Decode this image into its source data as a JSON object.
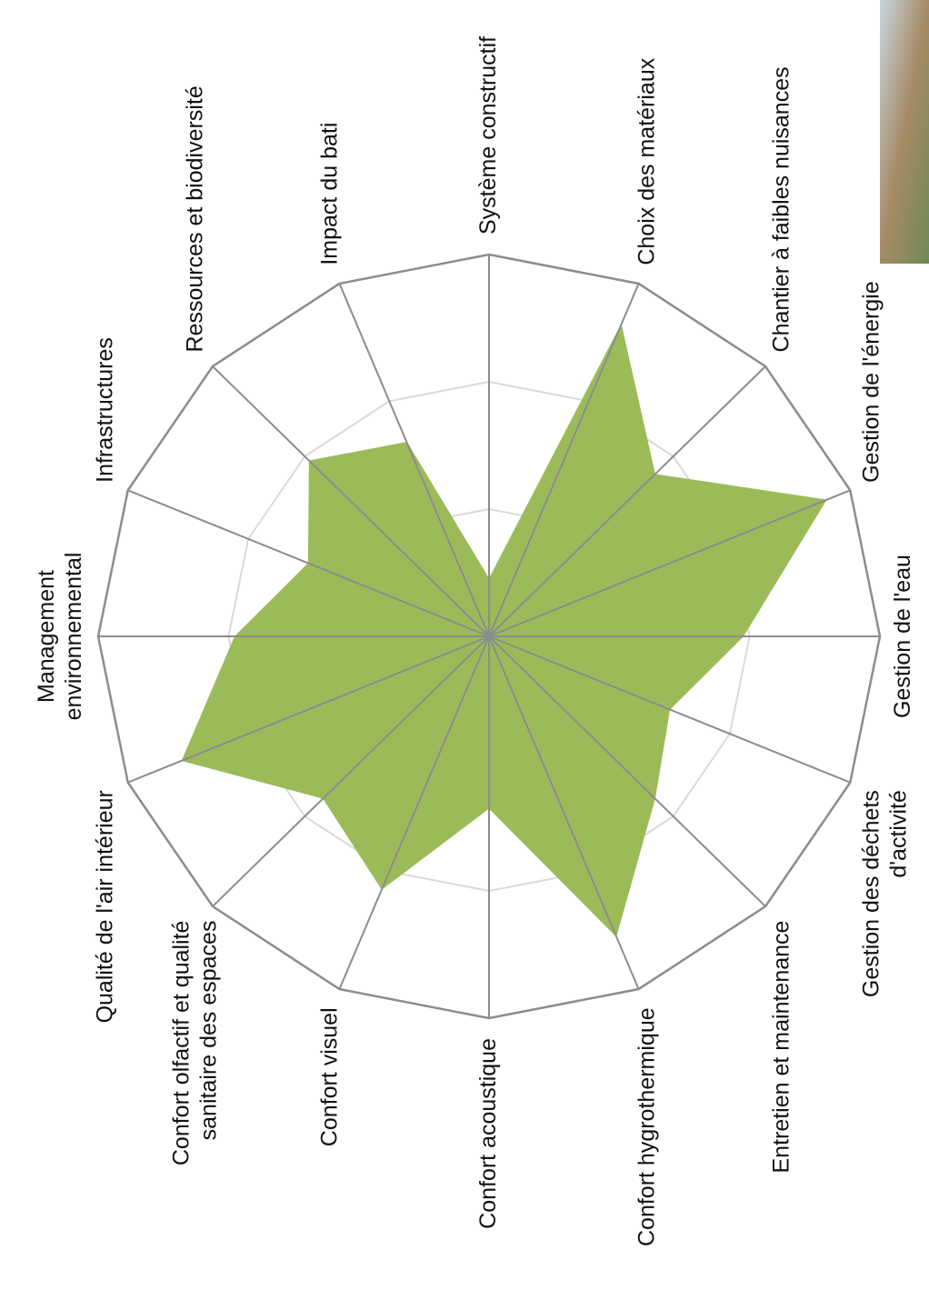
{
  "chart_data": {
    "type": "radar",
    "categories": [
      "Système constructif",
      "Choix des matériaux",
      "Chantier à faibles nuisances",
      "Gestion de l'énergie",
      "Gestion de l'eau",
      "Gestion des déchets\nd'activité",
      "Entretien et maintenance",
      "Confort hygrothermique",
      "Confort acoustique",
      "Confort visuel",
      "Confort olfactif et qualité\nsanitaire des espaces",
      "Qualité de l'air intérieur",
      "Management\nenvironnemental",
      "Infrastructures",
      "Ressources et biodiversité",
      "Impact du bati"
    ],
    "values": [
      0.45,
      2.65,
      1.8,
      2.8,
      1.95,
      1.5,
      1.8,
      2.55,
      1.35,
      2.15,
      1.8,
      2.55,
      1.95,
      1.5,
      1.95,
      1.65
    ],
    "color": "#9bbb59",
    "rlim": [
      0,
      3
    ],
    "rticks": [
      1,
      2,
      3
    ],
    "grid": true
  }
}
